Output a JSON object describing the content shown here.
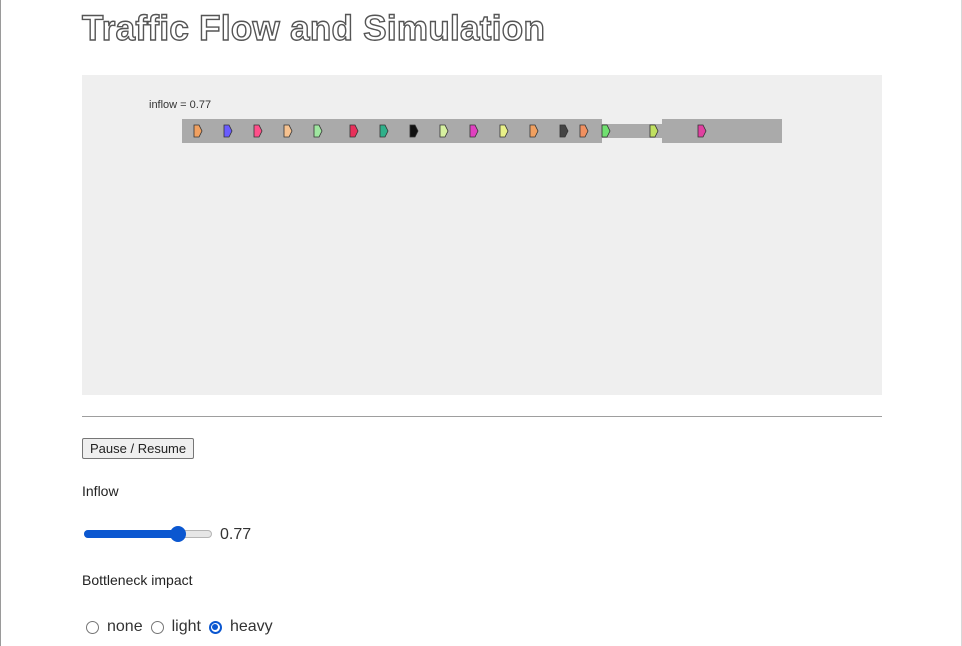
{
  "page": {
    "title": "Traffic Flow and Simulation"
  },
  "simulation": {
    "inflow_readout": "inflow = 0.77",
    "road_color": "#aaaaaa",
    "vehicles": [
      {
        "color": "#f0a060",
        "lane": "main"
      },
      {
        "color": "#6a5cff",
        "lane": "main"
      },
      {
        "color": "#ff4f8a",
        "lane": "main"
      },
      {
        "color": "#f6c290",
        "lane": "main"
      },
      {
        "color": "#9fe6a0",
        "lane": "main"
      },
      {
        "color": "#e8305a",
        "lane": "main"
      },
      {
        "color": "#2fb08a",
        "lane": "main"
      },
      {
        "color": "#111111",
        "lane": "main"
      },
      {
        "color": "#d6f0a0",
        "lane": "main"
      },
      {
        "color": "#e040c0",
        "lane": "main"
      },
      {
        "color": "#e8f088",
        "lane": "main"
      },
      {
        "color": "#f0a060",
        "lane": "main"
      },
      {
        "color": "#444444",
        "lane": "main"
      },
      {
        "color": "#f09060",
        "lane": "main"
      },
      {
        "color": "#70e070",
        "lane": "bottleneck"
      },
      {
        "color": "#c0e060",
        "lane": "bottleneck"
      },
      {
        "color": "#e040a0",
        "lane": "exit"
      }
    ]
  },
  "controls": {
    "pause_resume_label": "Pause / Resume",
    "inflow": {
      "label": "Inflow",
      "value": 0.77,
      "value_text": "0.77",
      "min": 0,
      "max": 1
    },
    "bottleneck": {
      "label": "Bottleneck impact",
      "options": [
        "none",
        "light",
        "heavy"
      ],
      "selected": "heavy"
    }
  },
  "colors": {
    "accent": "#0b57d0",
    "panel_background": "#efefef"
  }
}
